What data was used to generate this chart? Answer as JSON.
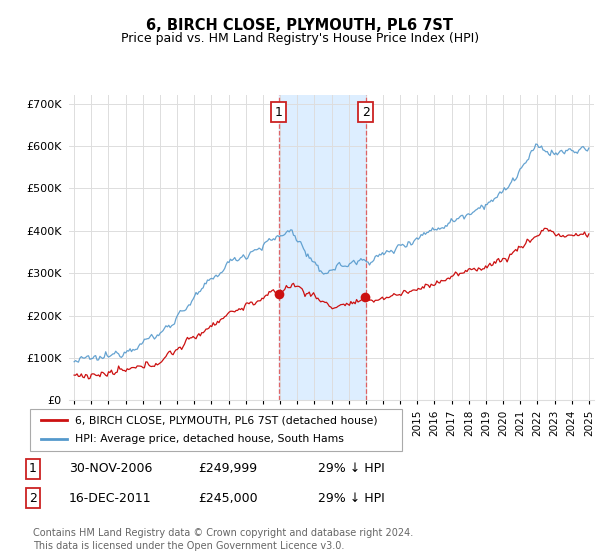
{
  "title": "6, BIRCH CLOSE, PLYMOUTH, PL6 7ST",
  "subtitle": "Price paid vs. HM Land Registry's House Price Index (HPI)",
  "background_color": "#ffffff",
  "grid_color": "#dddddd",
  "hpi_color": "#5599cc",
  "price_color": "#cc1111",
  "highlight_color": "#ddeeff",
  "highlight_border": "#dd4444",
  "legend_label_price": "6, BIRCH CLOSE, PLYMOUTH, PL6 7ST (detached house)",
  "legend_label_hpi": "HPI: Average price, detached house, South Hams",
  "transaction1_date": "30-NOV-2006",
  "transaction1_price": "£249,999",
  "transaction1_note": "29% ↓ HPI",
  "transaction2_date": "16-DEC-2011",
  "transaction2_price": "£245,000",
  "transaction2_note": "29% ↓ HPI",
  "footer": "Contains HM Land Registry data © Crown copyright and database right 2024.\nThis data is licensed under the Open Government Licence v3.0.",
  "ylim": [
    0,
    720000
  ],
  "yticks": [
    0,
    100000,
    200000,
    300000,
    400000,
    500000,
    600000,
    700000
  ],
  "ytick_labels": [
    "£0",
    "£100K",
    "£200K",
    "£300K",
    "£400K",
    "£500K",
    "£600K",
    "£700K"
  ]
}
